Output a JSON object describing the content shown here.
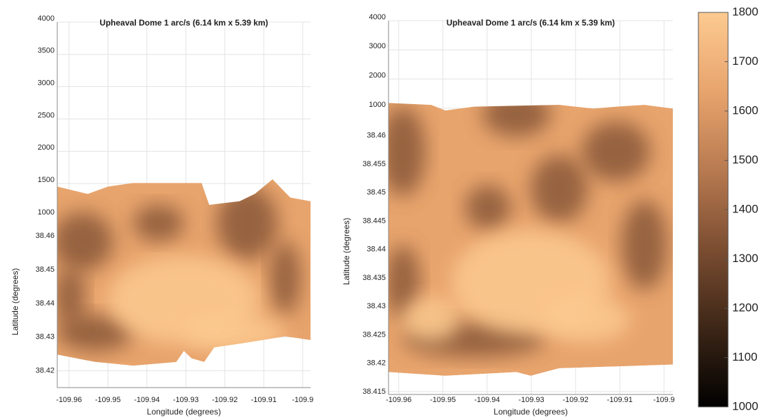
{
  "chart_data": [
    {
      "type": "surface",
      "title": "Upheaval Dome 1 arc/s (6.14 km x 5.39 km)",
      "x_label": "Longitude (degrees)",
      "y_label": "Latitude (degrees)",
      "xlim": [
        -109.963,
        -109.898
      ],
      "xticks": [
        -109.96,
        -109.95,
        -109.94,
        -109.93,
        -109.92,
        -109.91,
        -109.9
      ],
      "ylim": [
        38.415,
        38.466
      ],
      "yticks": [
        38.42,
        38.43,
        38.44,
        38.45,
        38.46
      ],
      "zlim": [
        1000,
        4000
      ],
      "zticks": [
        1000,
        1500,
        2000,
        2500,
        3000,
        3500,
        4000
      ],
      "grid": true
    },
    {
      "type": "surface",
      "title": "Upheaval Dome 1 arc/s (6.14 km x 5.39 km)",
      "x_label": "Longitude (degrees)",
      "y_label": "Latitude (degrees)",
      "xlim": [
        -109.9623,
        -109.898
      ],
      "xticks": [
        -109.96,
        -109.95,
        -109.94,
        -109.93,
        -109.92,
        -109.91,
        -109.9
      ],
      "ylim": [
        38.4145,
        38.4648
      ],
      "yticks": [
        38.415,
        38.42,
        38.425,
        38.43,
        38.435,
        38.44,
        38.445,
        38.45,
        38.455,
        38.46
      ],
      "zlim": [
        1000,
        4000
      ],
      "zticks": [
        1000,
        2000,
        3000,
        4000
      ],
      "grid": true,
      "colorbar": {
        "lim": [
          1000,
          1800
        ],
        "ticks": [
          1000,
          1100,
          1200,
          1300,
          1400,
          1500,
          1600,
          1700,
          1800
        ],
        "colors": [
          "#000000",
          "#3d2617",
          "#7b4d31",
          "#b87a50",
          "#e8a46d",
          "#fcca90"
        ]
      }
    }
  ]
}
